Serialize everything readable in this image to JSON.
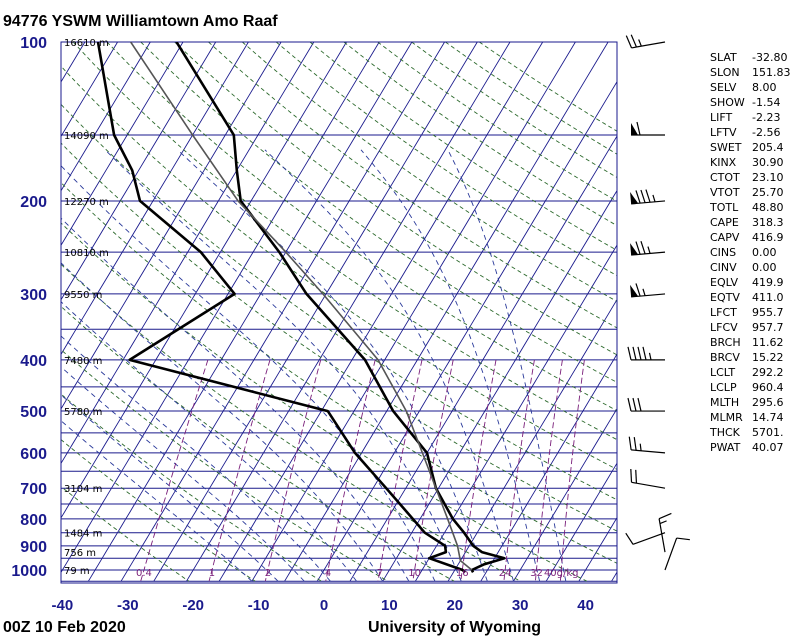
{
  "chart_data": {
    "type": "line",
    "title": "94776 YSWM Williamtown Amo Raaf",
    "footer_left": "00Z 10 Feb 2020",
    "footer_right": "University of Wyoming",
    "pressure_ticks": [
      "100",
      "200",
      "300",
      "400",
      "500",
      "600",
      "700",
      "800",
      "900",
      "1000"
    ],
    "pressure_tick_values": [
      100,
      200,
      300,
      400,
      500,
      600,
      700,
      800,
      900,
      1000
    ],
    "temperature_ticks": [
      "-40",
      "-30",
      "-20",
      "-10",
      "0",
      "10",
      "20",
      "30",
      "40"
    ],
    "temperature_tick_values": [
      -40,
      -30,
      -20,
      -10,
      0,
      10,
      20,
      30,
      40
    ],
    "xlim": [
      -40,
      45
    ],
    "ylim_hPa": [
      1050,
      100
    ],
    "heights": [
      {
        "p": 100,
        "label": "16610 m"
      },
      {
        "p": 150,
        "label": "14090 m"
      },
      {
        "p": 200,
        "label": "12270 m"
      },
      {
        "p": 250,
        "label": "10810 m"
      },
      {
        "p": 300,
        "label": "9550 m"
      },
      {
        "p": 400,
        "label": "7480 m"
      },
      {
        "p": 500,
        "label": "5780 m"
      },
      {
        "p": 700,
        "label": "3104 m"
      },
      {
        "p": 850,
        "label": "1484 m"
      },
      {
        "p": 925,
        "label": "756 m"
      },
      {
        "p": 1000,
        "label": "79 m"
      }
    ],
    "mixing_ratio_labels": [
      {
        "value": 0.4,
        "label": "0.4"
      },
      {
        "value": 1,
        "label": "1"
      },
      {
        "value": 2,
        "label": "2"
      },
      {
        "value": 4,
        "label": "4"
      },
      {
        "value": 7,
        "label": "7"
      },
      {
        "value": 10,
        "label": "10"
      },
      {
        "value": 16,
        "label": "16"
      },
      {
        "value": 24,
        "label": "24"
      },
      {
        "value": 32,
        "label": "32"
      },
      {
        "value": 40,
        "label": "40g/kg"
      }
    ],
    "series": [
      {
        "name": "temperature",
        "points": [
          [
            1010,
            23.0
          ],
          [
            1000,
            22.6
          ],
          [
            975,
            24.0
          ],
          [
            950,
            26.5
          ],
          [
            925,
            22.5
          ],
          [
            900,
            20.6
          ],
          [
            850,
            18.0
          ],
          [
            800,
            15.0
          ],
          [
            700,
            9.6
          ],
          [
            600,
            5.0
          ],
          [
            500,
            -4.0
          ],
          [
            400,
            -13.0
          ],
          [
            300,
            -28.0
          ],
          [
            250,
            -36.0
          ],
          [
            200,
            -46.6
          ],
          [
            175,
            -50.0
          ],
          [
            150,
            -53.7
          ],
          [
            100,
            -71.0
          ]
        ]
      },
      {
        "name": "dewpoint",
        "points": [
          [
            1010,
            21.8
          ],
          [
            1000,
            21.2
          ],
          [
            950,
            15.0
          ],
          [
            925,
            17.0
          ],
          [
            900,
            16.3
          ],
          [
            850,
            12.0
          ],
          [
            700,
            2.0
          ],
          [
            600,
            -6.0
          ],
          [
            500,
            -14.0
          ],
          [
            400,
            -49.0
          ],
          [
            300,
            -39.0
          ],
          [
            250,
            -48.0
          ],
          [
            200,
            -62.0
          ],
          [
            175,
            -66.0
          ],
          [
            150,
            -72.0
          ],
          [
            100,
            -83.0
          ]
        ]
      },
      {
        "name": "parcel",
        "points": [
          [
            1000,
            22.6
          ],
          [
            960,
            20.0
          ],
          [
            900,
            18.2
          ],
          [
            800,
            14.2
          ],
          [
            700,
            9.6
          ],
          [
            600,
            4.3
          ],
          [
            500,
            -2.0
          ],
          [
            400,
            -11.0
          ],
          [
            300,
            -25.5
          ],
          [
            250,
            -35.0
          ],
          [
            200,
            -47.0
          ],
          [
            150,
            -60.0
          ],
          [
            100,
            -78.0
          ]
        ]
      }
    ],
    "wind_barbs": [
      {
        "p": 1000,
        "dir": 20,
        "spd": 10
      },
      {
        "p": 925,
        "dir": 350,
        "spd": 15
      },
      {
        "p": 850,
        "dir": 250,
        "spd": 10
      },
      {
        "p": 700,
        "dir": 280,
        "spd": 20
      },
      {
        "p": 600,
        "dir": 275,
        "spd": 25
      },
      {
        "p": 500,
        "dir": 270,
        "spd": 30
      },
      {
        "p": 400,
        "dir": 270,
        "spd": 45
      },
      {
        "p": 300,
        "dir": 265,
        "spd": 65
      },
      {
        "p": 250,
        "dir": 265,
        "spd": 75
      },
      {
        "p": 200,
        "dir": 265,
        "spd": 85
      },
      {
        "p": 150,
        "dir": 270,
        "spd": 60
      },
      {
        "p": 100,
        "dir": 260,
        "spd": 25
      }
    ],
    "indices": [
      {
        "name": "SLAT",
        "value": "-32.80"
      },
      {
        "name": "SLON",
        "value": "151.83"
      },
      {
        "name": "SELV",
        "value": "8.00"
      },
      {
        "name": "SHOW",
        "value": "-1.54"
      },
      {
        "name": "LIFT",
        "value": "-2.23"
      },
      {
        "name": "LFTV",
        "value": "-2.56"
      },
      {
        "name": "SWET",
        "value": "205.4"
      },
      {
        "name": "KINX",
        "value": "30.90"
      },
      {
        "name": "CTOT",
        "value": "23.10"
      },
      {
        "name": "VTOT",
        "value": "25.70"
      },
      {
        "name": "TOTL",
        "value": "48.80"
      },
      {
        "name": "CAPE",
        "value": "318.3"
      },
      {
        "name": "CAPV",
        "value": "416.9"
      },
      {
        "name": "CINS",
        "value": "0.00"
      },
      {
        "name": "CINV",
        "value": "0.00"
      },
      {
        "name": "EQLV",
        "value": "419.9"
      },
      {
        "name": "EQTV",
        "value": "411.0"
      },
      {
        "name": "LFCT",
        "value": "955.7"
      },
      {
        "name": "LFCV",
        "value": "957.7"
      },
      {
        "name": "BRCH",
        "value": "11.62"
      },
      {
        "name": "BRCV",
        "value": "15.22"
      },
      {
        "name": "LCLT",
        "value": "292.2"
      },
      {
        "name": "LCLP",
        "value": "960.4"
      },
      {
        "name": "MLTH",
        "value": "295.6"
      },
      {
        "name": "MLMR",
        "value": "14.74"
      },
      {
        "name": "THCK",
        "value": "5701."
      },
      {
        "name": "PWAT",
        "value": "40.07"
      }
    ],
    "colors": {
      "isobar": "#1a1a8c",
      "isotherm": "#1a1a8c",
      "dry_adiabat": "#2d6a2d",
      "moist_adiabat": "#2a3a9a",
      "mixing_ratio": "#7a1f7a",
      "temperature": "#000000",
      "dewpoint": "#000000",
      "parcel": "#555555"
    }
  }
}
